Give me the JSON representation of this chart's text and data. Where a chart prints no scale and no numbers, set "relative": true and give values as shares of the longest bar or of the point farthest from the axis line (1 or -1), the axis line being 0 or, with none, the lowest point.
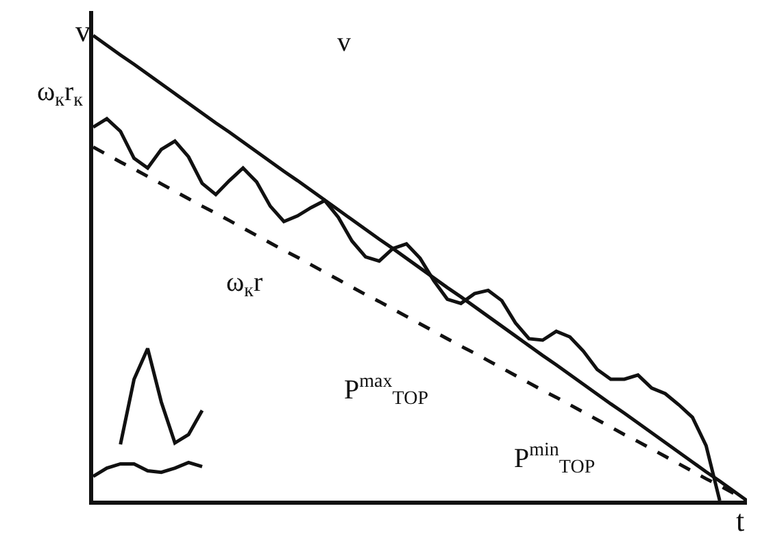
{
  "chart_data": {
    "type": "line",
    "relative": true,
    "xlabel": "t",
    "ylabel": "v",
    "marker": "none",
    "categories": [
      null,
      null,
      null,
      null,
      null,
      null,
      null,
      null,
      null,
      null,
      null,
      null,
      null,
      null,
      null,
      null,
      null,
      null,
      null,
      null,
      null,
      null,
      null,
      null,
      null,
      null,
      null,
      null,
      null,
      null,
      null,
      null,
      null,
      null,
      null,
      null,
      null,
      null,
      null,
      null,
      null,
      null,
      null,
      null,
      null,
      null,
      null,
      null,
      null
    ],
    "series": [
      {
        "color": "#111111",
        "line_style": "solid",
        "values": [
          1,
          0.979,
          0.958,
          0.938,
          0.917,
          0.896,
          0.875,
          0.854,
          0.833,
          0.812,
          0.792,
          0.771,
          0.75,
          0.729,
          0.708,
          0.688,
          0.667,
          0.646,
          0.625,
          0.604,
          0.583,
          0.562,
          0.542,
          0.521,
          0.5,
          0.479,
          0.458,
          0.438,
          0.417,
          0.396,
          0.375,
          0.354,
          0.333,
          0.312,
          0.292,
          0.271,
          0.25,
          0.229,
          0.208,
          0.188,
          0.167,
          0.146,
          0.125,
          0.104,
          0.083,
          0.062,
          0.042,
          0.021,
          0
        ]
      },
      {
        "color": "#111111",
        "line_style": "dashed",
        "values": [
          0.76,
          0.744,
          0.728,
          0.713,
          0.697,
          0.681,
          0.665,
          0.649,
          0.633,
          0.618,
          0.602,
          0.586,
          0.57,
          0.554,
          0.538,
          0.523,
          0.507,
          0.491,
          0.475,
          0.459,
          0.443,
          0.428,
          0.412,
          0.396,
          0.38,
          0.364,
          0.348,
          0.332,
          0.317,
          0.301,
          0.285,
          0.269,
          0.253,
          0.237,
          0.222,
          0.206,
          0.19,
          0.174,
          0.158,
          0.142,
          0.127,
          0.111,
          0.095,
          0.079,
          0.063,
          0.047,
          0.032,
          0.016,
          0
        ]
      },
      {
        "color": "#111111",
        "line_style": "solid",
        "values": [
          0.803,
          0.821,
          0.794,
          0.736,
          0.715,
          0.755,
          0.773,
          0.739,
          0.682,
          0.658,
          0.688,
          0.715,
          0.685,
          0.633,
          0.6,
          0.612,
          0.63,
          0.645,
          0.609,
          0.558,
          0.524,
          0.515,
          0.542,
          0.552,
          0.521,
          0.473,
          0.433,
          0.424,
          0.445,
          0.452,
          0.43,
          0.382,
          0.348,
          0.345,
          0.364,
          0.352,
          0.321,
          0.282,
          0.261,
          0.261,
          0.27,
          0.242,
          0.23,
          0.206,
          0.179,
          0.118,
          0,
          null,
          null
        ]
      },
      {
        "color": "#111111",
        "line_style": "solid",
        "values": [
          null,
          null,
          0.121,
          0.261,
          0.327,
          0.212,
          0.124,
          0.142,
          0.194,
          null,
          null,
          null,
          null,
          null,
          null,
          null,
          null,
          null,
          null,
          null,
          null,
          null,
          null,
          null,
          null,
          null,
          null,
          null,
          null,
          null,
          null,
          null,
          null,
          null,
          null,
          null,
          null,
          null,
          null,
          null,
          null,
          null,
          null,
          null,
          null,
          null,
          null,
          null,
          null
        ]
      },
      {
        "color": "#111111",
        "line_style": "solid",
        "values": [
          0.052,
          0.07,
          0.079,
          0.079,
          0.064,
          0.061,
          0.07,
          0.082,
          0.073,
          null,
          null,
          null,
          null,
          null,
          null,
          null,
          null,
          null,
          null,
          null,
          null,
          null,
          null,
          null,
          null,
          null,
          null,
          null,
          null,
          null,
          null,
          null,
          null,
          null,
          null,
          null,
          null,
          null,
          null,
          null,
          null,
          null,
          null,
          null,
          null,
          null,
          null,
          null,
          null
        ]
      }
    ],
    "annotations": [
      "v",
      "ω$_{к}$r$_{к}$",
      "ω$_{к}$r",
      "Р$^{max}$$_{ТОР}$",
      "Р$^{min}$$_{ТОР}$"
    ]
  }
}
